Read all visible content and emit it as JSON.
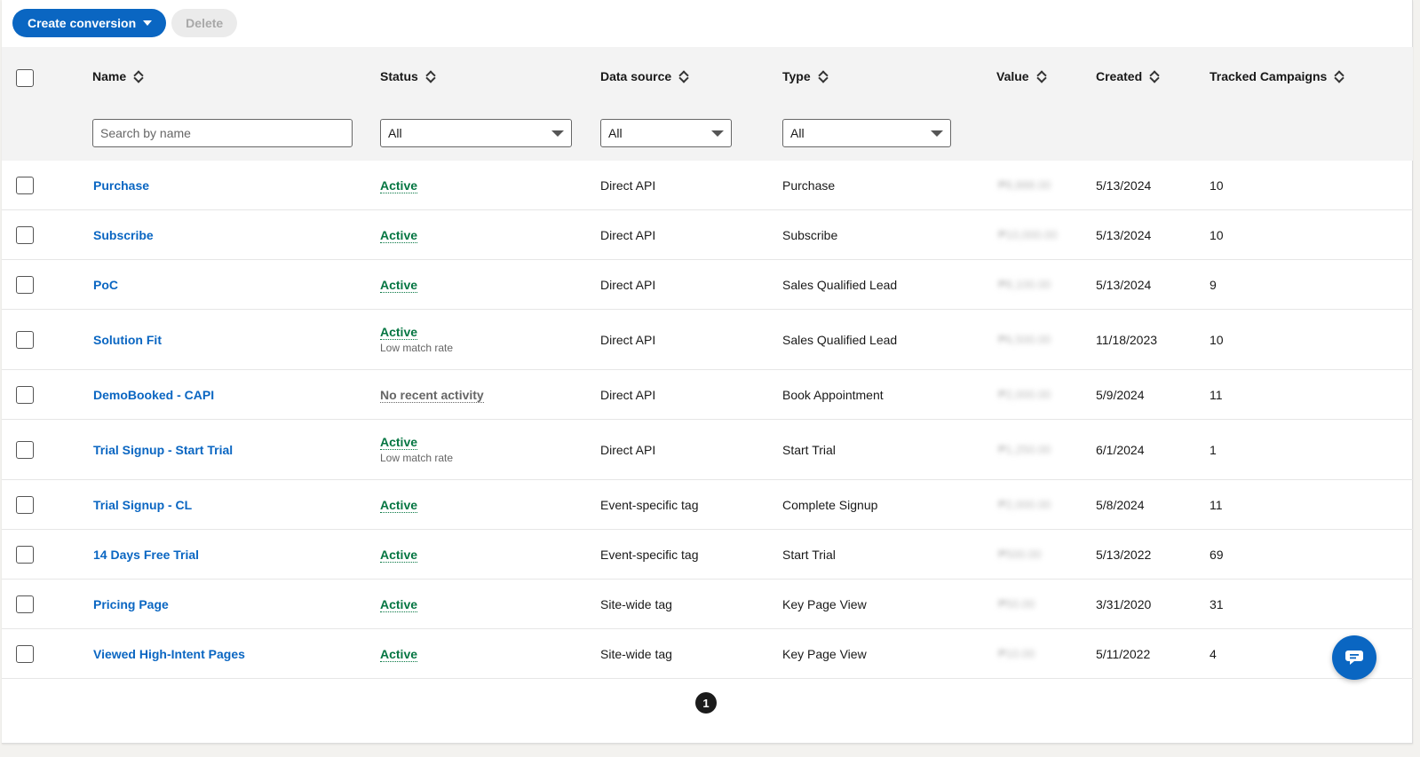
{
  "toolbar": {
    "create_label": "Create conversion",
    "delete_label": "Delete"
  },
  "columns": {
    "name": "Name",
    "status": "Status",
    "data_source": "Data source",
    "type": "Type",
    "value": "Value",
    "created": "Created",
    "tracked": "Tracked Campaigns"
  },
  "filters": {
    "search_placeholder": "Search by name",
    "status_value": "All",
    "source_value": "All",
    "type_value": "All"
  },
  "rows": [
    {
      "name": "Purchase",
      "status": "Active",
      "substatus": "",
      "source": "Direct API",
      "type": "Purchase",
      "value": "₱8,888.00",
      "created": "5/13/2024",
      "campaigns": "10"
    },
    {
      "name": "Subscribe",
      "status": "Active",
      "substatus": "",
      "source": "Direct API",
      "type": "Subscribe",
      "value": "₱10,000.00",
      "created": "5/13/2024",
      "campaigns": "10"
    },
    {
      "name": "PoC",
      "status": "Active",
      "substatus": "",
      "source": "Direct API",
      "type": "Sales Qualified Lead",
      "value": "₱8,100.00",
      "created": "5/13/2024",
      "campaigns": "9"
    },
    {
      "name": "Solution Fit",
      "status": "Active",
      "substatus": "Low match rate",
      "source": "Direct API",
      "type": "Sales Qualified Lead",
      "value": "₱6,500.00",
      "created": "11/18/2023",
      "campaigns": "10"
    },
    {
      "name": "DemoBooked - CAPI",
      "status": "No recent activity",
      "substatus": "",
      "source": "Direct API",
      "type": "Book Appointment",
      "value": "₱2,000.00",
      "created": "5/9/2024",
      "campaigns": "11"
    },
    {
      "name": "Trial Signup - Start Trial",
      "status": "Active",
      "substatus": "Low match rate",
      "source": "Direct API",
      "type": "Start Trial",
      "value": "₱1,250.00",
      "created": "6/1/2024",
      "campaigns": "1"
    },
    {
      "name": "Trial Signup - CL",
      "status": "Active",
      "substatus": "",
      "source": "Event-specific tag",
      "type": "Complete Signup",
      "value": "₱2,000.00",
      "created": "5/8/2024",
      "campaigns": "11"
    },
    {
      "name": "14 Days Free Trial",
      "status": "Active",
      "substatus": "",
      "source": "Event-specific tag",
      "type": "Start Trial",
      "value": "₱500.00",
      "created": "5/13/2022",
      "campaigns": "69"
    },
    {
      "name": "Pricing Page",
      "status": "Active",
      "substatus": "",
      "source": "Site-wide tag",
      "type": "Key Page View",
      "value": "₱50.00",
      "created": "3/31/2020",
      "campaigns": "31"
    },
    {
      "name": "Viewed High-Intent Pages",
      "status": "Active",
      "substatus": "",
      "source": "Site-wide tag",
      "type": "Key Page View",
      "value": "₱10.00",
      "created": "5/11/2022",
      "campaigns": "4"
    }
  ],
  "pagination": {
    "current": "1"
  },
  "colors": {
    "accent": "#0a66c2",
    "active": "#057642"
  }
}
